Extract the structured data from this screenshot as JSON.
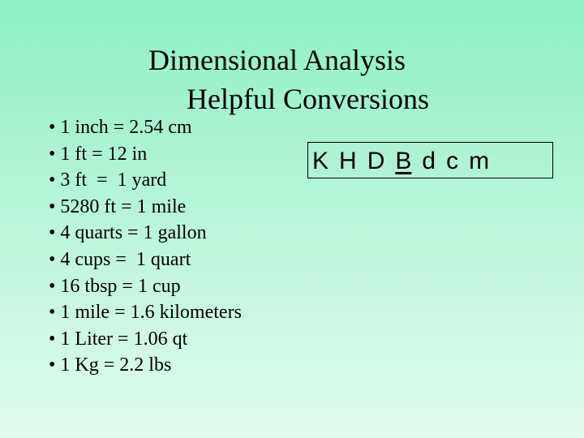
{
  "title": {
    "line1": "Dimensional Analysis",
    "line2": "Helpful Conversions"
  },
  "conversions": [
    "1 inch = 2.54 cm",
    "1 ft = 12 in",
    "3 ft  =  1 yard",
    "5280 ft = 1 mile",
    "4 quarts = 1 gallon",
    "4 cups =  1 quart",
    "16 tbsp = 1 cup",
    "1 mile = 1.6 kilometers",
    "1 Liter = 1.06 qt",
    "1 Kg = 2.2 lbs"
  ],
  "bullet": "•",
  "metric_prefixes": [
    "K",
    "H",
    "D",
    "B",
    "d",
    "c",
    "m"
  ],
  "underlined_prefix": "B"
}
